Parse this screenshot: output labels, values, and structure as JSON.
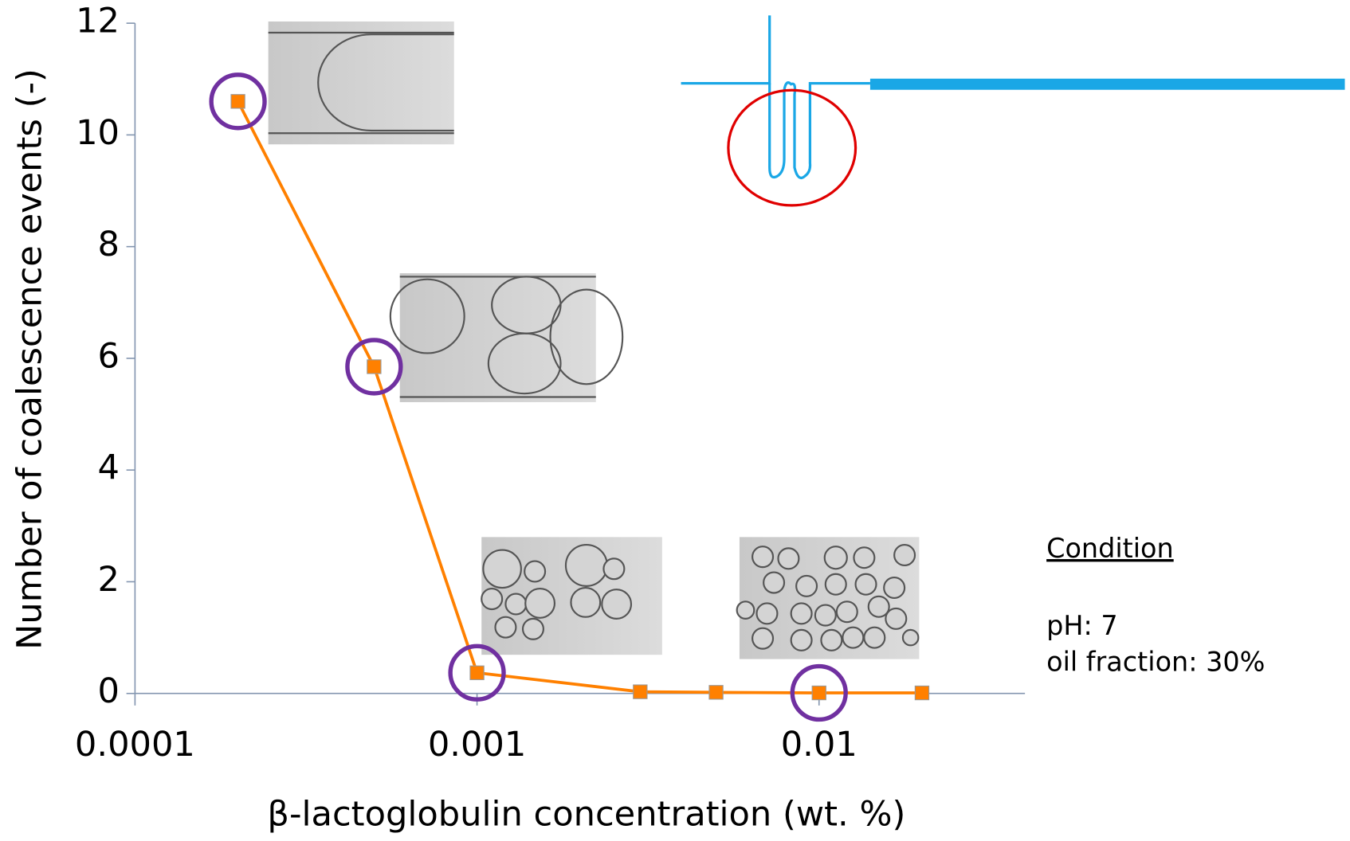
{
  "chart_data": {
    "type": "line",
    "x_label": "β-lactoglobulin concentration (wt. %)",
    "y_label": "Number of coalescence events (-)",
    "x": [
      0.0002,
      0.0005,
      0.001,
      0.003,
      0.005,
      0.01,
      0.02
    ],
    "series": [
      {
        "color": "#ff8000",
        "marker_color": "#ff8000",
        "values": [
          10.6,
          5.85,
          0.37,
          0.03,
          0.02,
          0.01,
          0.01
        ]
      }
    ],
    "xlim": [
      0.0001,
      0.04
    ],
    "x_log_scale": true,
    "xticks": [
      0.0001,
      0.001,
      0.01
    ],
    "ylim": [
      0,
      12
    ],
    "yticks": [
      0,
      2,
      4,
      6,
      8,
      10,
      12
    ],
    "highlighted_points": [
      0,
      1,
      2,
      5
    ],
    "highlight_color": "#7030a0",
    "condition": {
      "heading": "Condition",
      "lines": [
        "pH: 7",
        "oil fraction: 30%"
      ],
      "color": "#339933"
    }
  }
}
